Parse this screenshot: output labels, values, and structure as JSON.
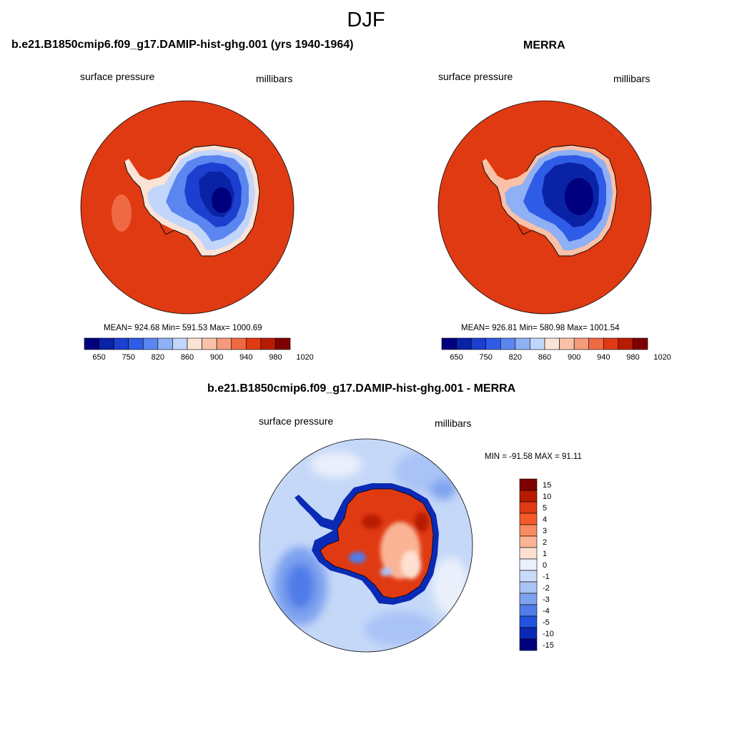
{
  "figure": {
    "season": "DJF"
  },
  "panels": [
    {
      "title": "b.e21.B1850cmip6.f09_g17.DAMIP-hist-ghg.001 (yrs 1940-1964)",
      "left_label": "surface pressure",
      "right_label": "millibars",
      "stats": "MEAN= 924.68  Min= 591.53  Max= 1000.69",
      "colorbar_ticks": [
        "650",
        "750",
        "820",
        "860",
        "900",
        "940",
        "980",
        "1020"
      ]
    },
    {
      "title": "MERRA",
      "left_label": "surface pressure",
      "right_label": "millibars",
      "stats": "MEAN= 926.81  Min= 580.98  Max= 1001.54",
      "colorbar_ticks": [
        "650",
        "750",
        "820",
        "860",
        "900",
        "940",
        "980",
        "1020"
      ]
    },
    {
      "title": "b.e21.B1850cmip6.f09_g17.DAMIP-hist-ghg.001 - MERRA",
      "left_label": "surface pressure",
      "right_label": "millibars",
      "stats": "MIN = -91.58 MAX =  91.11",
      "colorbar_ticks": [
        "15",
        "10",
        "5",
        "4",
        "3",
        "2",
        "1",
        "0",
        "-1",
        "-2",
        "-3",
        "-4",
        "-5",
        "-10",
        "-15"
      ]
    }
  ],
  "colors": {
    "abs_scale": [
      "#00007f",
      "#0a22a6",
      "#1c3fd0",
      "#2f5ce6",
      "#5b86ef",
      "#8fb0f5",
      "#c2d6fb",
      "#fbe3d6",
      "#f9c2a8",
      "#f59a7a",
      "#ef6a44",
      "#e03a12",
      "#b71c00",
      "#7f0000"
    ],
    "diff_scale": [
      "#7f0000",
      "#b71c00",
      "#e03a12",
      "#f55a2a",
      "#f98a62",
      "#fab394",
      "#fde0d2",
      "#eaf0fb",
      "#c9dafa",
      "#a9c3f6",
      "#7ea2ef",
      "#4f7ce8",
      "#2352dc",
      "#0a2ab5",
      "#00007f"
    ],
    "ocean_abs": "#e03a12",
    "ocean_diff": "#c5d8f8"
  }
}
